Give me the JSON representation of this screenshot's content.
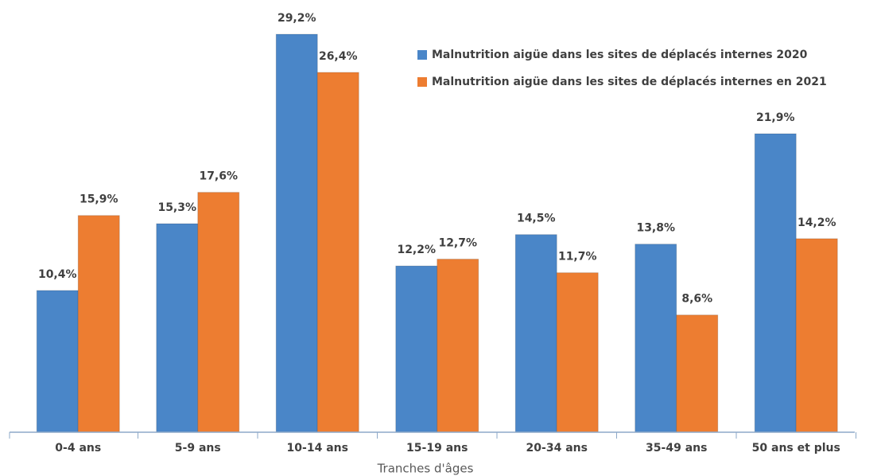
{
  "chart_data": {
    "type": "bar",
    "x_label": "Tranches d'âges",
    "categories": [
      "0-4 ans",
      "5-9 ans",
      "10-14 ans",
      "15-19 ans",
      "20-34 ans",
      "35-49 ans",
      "50 ans et plus"
    ],
    "series": [
      {
        "name": "Malnutrition aigüe dans les sites de déplacés internes 2020",
        "color": "#4a86c8",
        "values": [
          10.4,
          15.3,
          29.2,
          12.2,
          14.5,
          13.8,
          21.9
        ],
        "value_labels": [
          "10,4%",
          "15,3%",
          "29,2%",
          "12,2%",
          "14,5%",
          "13,8%",
          "21,9%"
        ]
      },
      {
        "name": "Malnutrition aigüe dans les sites de déplacés internes en 2021",
        "color": "#ed7d31",
        "values": [
          15.9,
          17.6,
          26.4,
          12.7,
          11.7,
          8.6,
          14.2
        ],
        "value_labels": [
          "15,9%",
          "17,6%",
          "26,4%",
          "12,7%",
          "11,7%",
          "8,6%",
          "14,2%"
        ]
      }
    ],
    "legend": "top-right"
  }
}
